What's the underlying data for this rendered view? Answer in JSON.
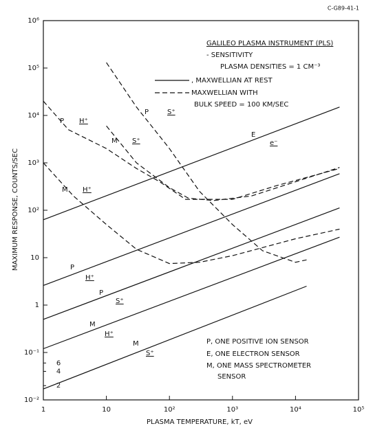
{
  "chart_data": {
    "type": "line",
    "id": "C-G89-41-1",
    "xlabel": "PLASMA TEMPERATURE, kT, eV",
    "ylabel": "MAXIMUM RESPONSE, COUNTS/SEC",
    "log_x": true,
    "log_y": true,
    "grid": false,
    "xlim": [
      1,
      100000
    ],
    "ylim": [
      0.01,
      1000000
    ],
    "xticks": [
      1,
      10,
      {
        "value": 100,
        "label": "10²"
      },
      {
        "value": 1000,
        "label": "10³"
      },
      {
        "value": 10000,
        "label": "10⁴"
      },
      {
        "value": 100000,
        "label": "10⁵"
      }
    ],
    "yticks": [
      {
        "value": 0.01,
        "label": "10⁻²"
      },
      {
        "value": 0.1,
        "label": "10⁻¹"
      },
      1,
      10,
      {
        "value": 100,
        "label": "10²"
      },
      {
        "value": 1000,
        "label": "10³"
      },
      {
        "value": 10000,
        "label": "10⁴"
      },
      {
        "value": 100000,
        "label": "10⁵"
      },
      {
        "value": 1000000,
        "label": "10⁶"
      }
    ],
    "minor_yticks": [
      {
        "value": 0.02,
        "label": "2"
      },
      {
        "value": 0.04,
        "label": "4"
      },
      {
        "value": 0.06,
        "label": "6"
      }
    ],
    "legend_title": [
      "GALILEO PLASMA INSTRUMENT (PLS)",
      "- SENSITIVITY",
      "PLASMA DENSITIES = 1 CM⁻³"
    ],
    "legend": [
      {
        "style": "solid",
        "label": ", MAXWELLIAN AT REST"
      },
      {
        "style": "dashed",
        "label": "MAXWELLIAN WITH",
        "label2": "BULK SPEED = 100 KM/SEC"
      }
    ],
    "notes": [
      "P, ONE POSITIVE ION SENSOR",
      "E, ONE ELECTRON SENSOR",
      "M, ONE MASS SPECTROMETER",
      "SENSOR"
    ],
    "color": "#111111",
    "series": [
      {
        "sensor": "E",
        "ion": "e⁻",
        "style": "solid",
        "x": [
          1,
          50000
        ],
        "values": [
          63,
          15000
        ]
      },
      {
        "sensor": "P",
        "ion": "H⁺",
        "style": "solid",
        "x": [
          1,
          50000
        ],
        "values": [
          2.6,
          590
        ]
      },
      {
        "sensor": "P",
        "ion": "S⁺",
        "style": "solid",
        "x": [
          1,
          50000
        ],
        "values": [
          0.5,
          112
        ]
      },
      {
        "sensor": "M",
        "ion": "H⁺",
        "style": "solid",
        "x": [
          1,
          50000
        ],
        "values": [
          0.12,
          27
        ]
      },
      {
        "sensor": "M",
        "ion": "S⁺",
        "style": "solid",
        "x": [
          1,
          15000
        ],
        "values": [
          0.017,
          2.5
        ]
      },
      {
        "sensor": "P",
        "ion": "H⁺",
        "style": "dashed",
        "x": [
          1,
          2.5,
          10,
          30,
          70,
          180,
          1000,
          5000,
          50000
        ],
        "values": [
          20000,
          5000,
          2000,
          760,
          400,
          170,
          170,
          330,
          760
        ]
      },
      {
        "sensor": "M",
        "ion": "H⁺",
        "style": "dashed",
        "x": [
          1,
          3,
          10,
          30,
          100,
          300,
          1000,
          10000,
          50000
        ],
        "values": [
          1000,
          200,
          50,
          15,
          7.5,
          8,
          11,
          25,
          40
        ]
      },
      {
        "sensor": "P",
        "ion": "S⁺",
        "style": "dashed",
        "x": [
          10,
          30,
          100,
          300,
          1000,
          3000,
          10000,
          15000
        ],
        "values": [
          130000,
          15000,
          2000,
          250,
          50,
          14,
          8,
          9
        ]
      },
      {
        "sensor": "M",
        "ion": "S⁺",
        "style": "dashed",
        "x": [
          10,
          30,
          100,
          200,
          500,
          2000,
          10000,
          50000
        ],
        "values": [
          6000,
          1000,
          300,
          180,
          160,
          200,
          400,
          800
        ]
      }
    ]
  }
}
